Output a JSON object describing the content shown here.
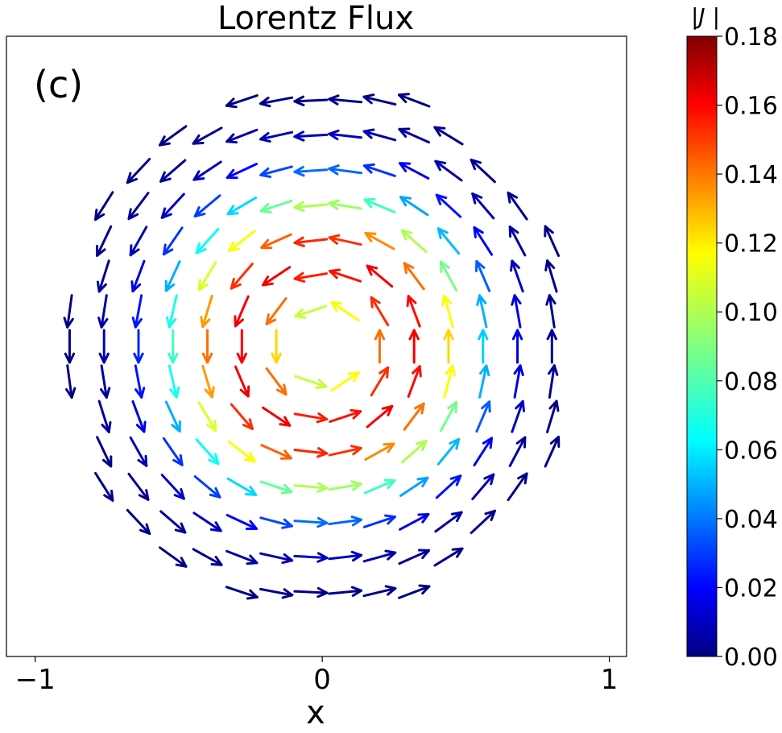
{
  "chart_data": {
    "type": "quiver",
    "title": "Lorentz Flux",
    "panel_label": "(c)",
    "xlabel": "x",
    "ylabel": "",
    "xlim": [
      -1.1,
      1.06
    ],
    "ylim": [
      -1.06,
      1.06
    ],
    "xticks": [
      -1,
      0,
      1
    ],
    "xtick_labels": [
      "−1",
      "0",
      "1"
    ],
    "yticks_shown": false,
    "grid": false,
    "colormap": "jet",
    "colorbar": {
      "label": "|J |",
      "range": [
        0,
        0.18
      ],
      "ticks": [
        0,
        0.02,
        0.04,
        0.06,
        0.08,
        0.1,
        0.12,
        0.14,
        0.16,
        0.18
      ],
      "tick_labels": [
        "0.00",
        "0.02",
        "0.04",
        "0.06",
        "0.08",
        "0.10",
        "0.12",
        "0.14",
        "0.16",
        "0.18"
      ]
    },
    "field": {
      "description": "counter-clockwise vortex centred at origin, arrows shown for 0.1 < r < 0.9",
      "grid_x": [
        -0.88,
        -0.76,
        -0.64,
        -0.52,
        -0.4,
        -0.28,
        -0.16,
        -0.04,
        0.08,
        0.2,
        0.32,
        0.44,
        0.56,
        0.68,
        0.8
      ],
      "grid_y": [
        -0.84,
        -0.72,
        -0.6,
        -0.48,
        -0.36,
        -0.24,
        -0.12,
        0.0,
        0.12,
        0.24,
        0.36,
        0.48,
        0.6,
        0.72,
        0.84
      ],
      "magnitude_peak": 0.16,
      "peak_radius": 0.3,
      "r_min": 0.1,
      "r_max": 0.9
    },
    "colors": {
      "axes": "#000000",
      "background": "#ffffff"
    }
  }
}
